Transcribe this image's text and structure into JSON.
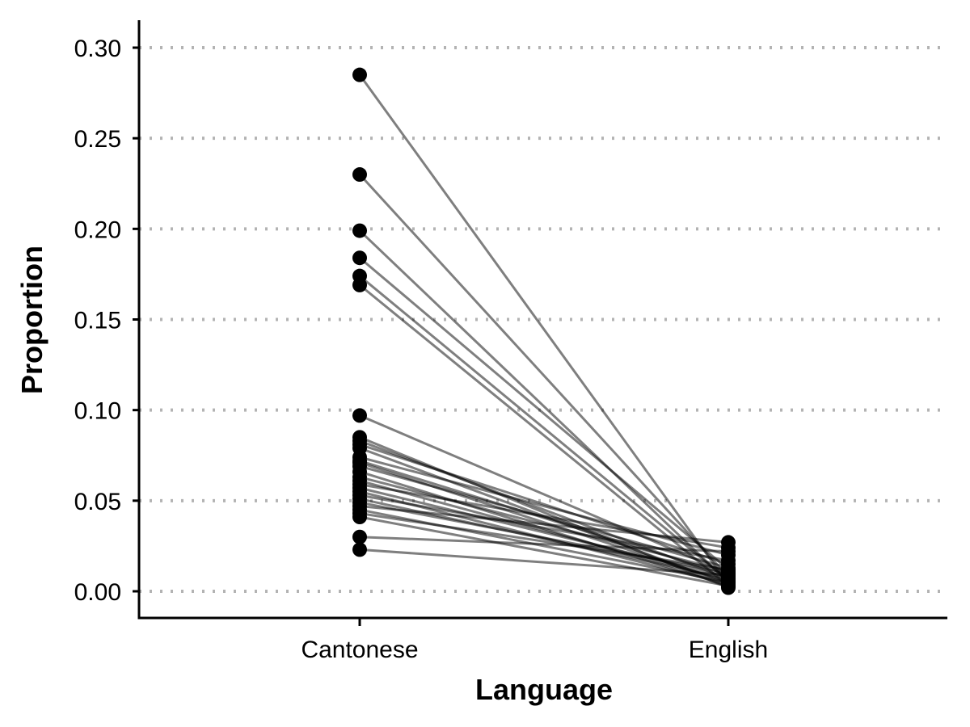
{
  "chart_data": {
    "type": "line",
    "title": "",
    "xlabel": "Language",
    "ylabel": "Proportion",
    "categories": [
      "Cantonese",
      "English"
    ],
    "ylim": [
      -0.015,
      0.315
    ],
    "yticks": [
      0.0,
      0.05,
      0.1,
      0.15,
      0.2,
      0.25,
      0.3
    ],
    "ytick_labels": [
      "0.00",
      "0.05",
      "0.10",
      "0.15",
      "0.20",
      "0.25",
      "0.30"
    ],
    "grid": "horizontal dotted",
    "legend": "none",
    "colors": {
      "points": "#000000",
      "lines": "#000000",
      "grid": "#b3b3b3",
      "axis": "#000000"
    },
    "pairs": [
      {
        "Cantonese": 0.285,
        "English": 0.004
      },
      {
        "Cantonese": 0.23,
        "English": 0.008
      },
      {
        "Cantonese": 0.199,
        "English": 0.005
      },
      {
        "Cantonese": 0.184,
        "English": 0.012
      },
      {
        "Cantonese": 0.174,
        "English": 0.006
      },
      {
        "Cantonese": 0.169,
        "English": 0.003
      },
      {
        "Cantonese": 0.097,
        "English": 0.01
      },
      {
        "Cantonese": 0.085,
        "English": 0.002
      },
      {
        "Cantonese": 0.083,
        "English": 0.007
      },
      {
        "Cantonese": 0.081,
        "English": 0.015
      },
      {
        "Cantonese": 0.079,
        "English": 0.004
      },
      {
        "Cantonese": 0.074,
        "English": 0.02
      },
      {
        "Cantonese": 0.072,
        "English": 0.009
      },
      {
        "Cantonese": 0.071,
        "English": 0.005
      },
      {
        "Cantonese": 0.069,
        "English": 0.013
      },
      {
        "Cantonese": 0.066,
        "English": 0.003
      },
      {
        "Cantonese": 0.063,
        "English": 0.011
      },
      {
        "Cantonese": 0.061,
        "English": 0.006
      },
      {
        "Cantonese": 0.059,
        "English": 0.024
      },
      {
        "Cantonese": 0.057,
        "English": 0.008
      },
      {
        "Cantonese": 0.055,
        "English": 0.004
      },
      {
        "Cantonese": 0.053,
        "English": 0.017
      },
      {
        "Cantonese": 0.051,
        "English": 0.007
      },
      {
        "Cantonese": 0.049,
        "English": 0.01
      },
      {
        "Cantonese": 0.047,
        "English": 0.027
      },
      {
        "Cantonese": 0.045,
        "English": 0.005
      },
      {
        "Cantonese": 0.043,
        "English": 0.012
      },
      {
        "Cantonese": 0.041,
        "English": 0.003
      },
      {
        "Cantonese": 0.03,
        "English": 0.022
      },
      {
        "Cantonese": 0.023,
        "English": 0.009
      }
    ]
  }
}
